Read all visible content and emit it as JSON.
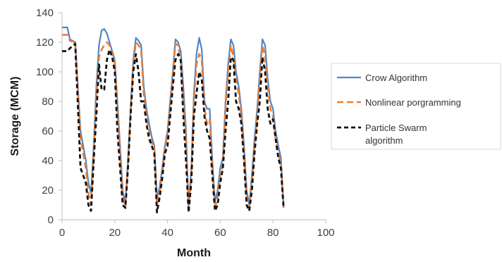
{
  "chart_data": {
    "type": "line",
    "xlabel": "Month",
    "ylabel": "Storage (MCM)",
    "xlim": [
      0,
      100
    ],
    "ylim": [
      0,
      140
    ],
    "xticks": [
      "0",
      "20",
      "40",
      "60",
      "80",
      "100"
    ],
    "yticks": [
      "0",
      "20",
      "40",
      "60",
      "80",
      "100",
      "120",
      "140"
    ],
    "grid": false,
    "legend": "right",
    "series": [
      {
        "name": "Crow Algorithm",
        "color": "#4f86c6",
        "dash": "solid",
        "x": [
          0,
          2,
          3,
          5,
          7,
          9,
          10,
          11,
          12,
          13,
          14,
          15,
          16,
          17,
          18,
          19,
          20,
          21,
          22,
          23,
          24,
          25,
          26,
          27,
          28,
          29,
          30,
          31,
          32,
          33,
          34,
          35,
          36,
          37,
          38,
          39,
          40,
          41,
          42,
          43,
          44,
          45,
          46,
          47,
          48,
          49,
          50,
          51,
          52,
          53,
          54,
          55,
          56,
          57,
          58,
          59,
          60,
          61,
          62,
          63,
          64,
          65,
          66,
          67,
          68,
          69,
          70,
          71,
          72,
          73,
          74,
          75,
          76,
          77,
          78,
          79,
          80,
          81,
          82,
          83,
          84
        ],
        "y": [
          130,
          130,
          122,
          120,
          60,
          40,
          25,
          18,
          50,
          90,
          118,
          128,
          129,
          126,
          120,
          114,
          108,
          80,
          50,
          20,
          10,
          40,
          75,
          108,
          123,
          121,
          118,
          90,
          75,
          65,
          56,
          50,
          15,
          22,
          35,
          50,
          60,
          80,
          100,
          122,
          120,
          114,
          90,
          60,
          8,
          35,
          85,
          112,
          123,
          115,
          80,
          75,
          75,
          40,
          12,
          20,
          35,
          42,
          80,
          105,
          122,
          118,
          100,
          90,
          75,
          50,
          20,
          10,
          30,
          55,
          75,
          100,
          122,
          118,
          95,
          80,
          75,
          60,
          50,
          42,
          10
        ]
      },
      {
        "name": "Nonlinear porgramming",
        "color": "#ed7d31",
        "dash": "dashed",
        "x": [
          0,
          2,
          3,
          5,
          7,
          9,
          10,
          11,
          12,
          13,
          14,
          15,
          16,
          17,
          18,
          19,
          20,
          21,
          22,
          23,
          24,
          25,
          26,
          27,
          28,
          29,
          30,
          31,
          32,
          33,
          34,
          35,
          36,
          37,
          38,
          39,
          40,
          41,
          42,
          43,
          44,
          45,
          46,
          47,
          48,
          49,
          50,
          51,
          52,
          53,
          54,
          55,
          56,
          57,
          58,
          59,
          60,
          61,
          62,
          63,
          64,
          65,
          66,
          67,
          68,
          69,
          70,
          71,
          72,
          73,
          74,
          75,
          76,
          77,
          78,
          79,
          80,
          81,
          82,
          83,
          84
        ],
        "y": [
          125,
          125,
          121,
          120,
          55,
          35,
          18,
          10,
          45,
          85,
          110,
          115,
          118,
          120,
          118,
          112,
          106,
          75,
          45,
          15,
          8,
          38,
          72,
          105,
          120,
          118,
          115,
          85,
          70,
          60,
          52,
          48,
          10,
          18,
          32,
          48,
          58,
          76,
          98,
          119,
          118,
          108,
          80,
          55,
          6,
          30,
          80,
          105,
          112,
          108,
          75,
          65,
          68,
          35,
          8,
          15,
          30,
          38,
          76,
          100,
          118,
          110,
          95,
          85,
          70,
          45,
          15,
          8,
          25,
          50,
          70,
          95,
          118,
          110,
          90,
          75,
          70,
          55,
          45,
          38,
          8
        ]
      },
      {
        "name": "Particle Swarm algorithm",
        "color": "#111111",
        "dash": "dashed",
        "x": [
          0,
          2,
          3,
          5,
          7,
          9,
          10,
          11,
          12,
          13,
          14,
          15,
          16,
          17,
          18,
          19,
          20,
          21,
          22,
          23,
          24,
          25,
          26,
          27,
          28,
          29,
          30,
          31,
          32,
          33,
          34,
          35,
          36,
          37,
          38,
          39,
          40,
          41,
          42,
          43,
          44,
          45,
          46,
          47,
          48,
          49,
          50,
          51,
          52,
          53,
          54,
          55,
          56,
          57,
          58,
          59,
          60,
          61,
          62,
          63,
          64,
          65,
          66,
          67,
          68,
          69,
          70,
          71,
          72,
          73,
          74,
          75,
          76,
          77,
          78,
          79,
          80,
          81,
          82,
          83,
          84
        ],
        "y": [
          114,
          114,
          116,
          119,
          35,
          25,
          10,
          6,
          40,
          70,
          105,
          88,
          88,
          108,
          115,
          110,
          100,
          60,
          35,
          10,
          8,
          35,
          70,
          100,
          112,
          100,
          80,
          80,
          65,
          55,
          50,
          45,
          5,
          15,
          28,
          45,
          50,
          70,
          90,
          108,
          112,
          108,
          70,
          40,
          5,
          25,
          70,
          85,
          100,
          95,
          70,
          60,
          55,
          30,
          6,
          10,
          25,
          35,
          60,
          80,
          110,
          108,
          80,
          75,
          65,
          40,
          10,
          6,
          20,
          45,
          65,
          80,
          110,
          100,
          75,
          65,
          68,
          55,
          42,
          35,
          8
        ]
      }
    ]
  }
}
